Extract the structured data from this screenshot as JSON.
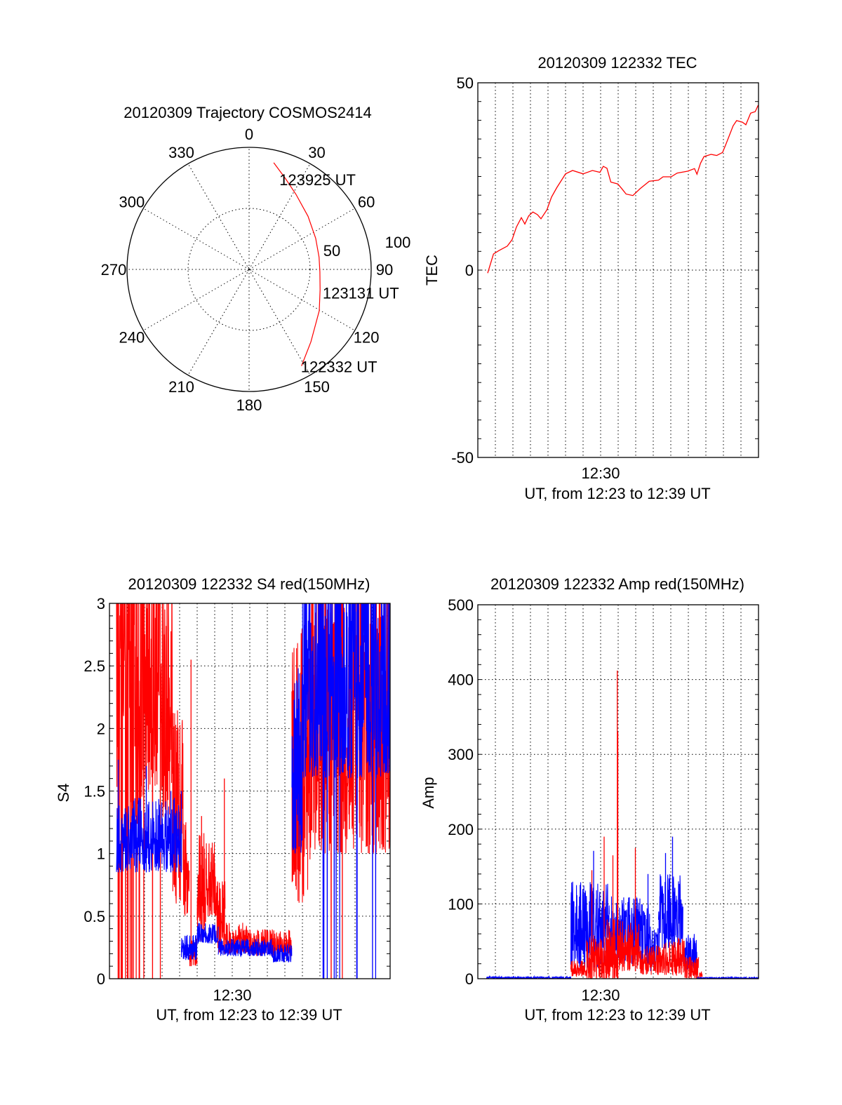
{
  "colors": {
    "red": "#ff0000",
    "blue": "#0000ff",
    "axis": "#000000"
  },
  "polar": {
    "title": "20120309 Trajectory COSMOS2414",
    "azimuth_labels": [
      "0",
      "30",
      "60",
      "90",
      "120",
      "150",
      "180",
      "210",
      "240",
      "270",
      "300",
      "330"
    ],
    "radial_labels": [
      "50",
      "100"
    ],
    "trajectory": [
      {
        "az": 13,
        "r": 89.7,
        "label": "123925 UT"
      },
      {
        "az": 22,
        "r": 80
      },
      {
        "az": 32,
        "r": 72.5
      },
      {
        "az": 48,
        "r": 65
      },
      {
        "az": 65,
        "r": 60.2
      },
      {
        "az": 80,
        "r": 58.2
      },
      {
        "az": 92,
        "r": 58,
        "label": "123131 UT"
      },
      {
        "az": 106,
        "r": 60.5
      },
      {
        "az": 120.5,
        "r": 66.7
      },
      {
        "az": 139.5,
        "r": 78
      },
      {
        "az": 151.5,
        "r": 90,
        "label": "122332 UT"
      }
    ]
  },
  "chart_data": [
    {
      "type": "line",
      "title": "20120309 122332 TEC",
      "ylabel": "TEC",
      "xlabel": "UT, from 12:23 to 12:39 UT",
      "x_units": "minutes after 12:23",
      "xlim": [
        0,
        16
      ],
      "ylim": [
        -50,
        50
      ],
      "yticks": [
        "-50",
        "0",
        "50"
      ],
      "xtick_label": "12:30",
      "xtick_value": 7,
      "series": [
        {
          "name": "TEC",
          "color": "red",
          "x": [
            0.56,
            0.89,
            1.2,
            1.68,
            1.95,
            2.2,
            2.48,
            2.68,
            2.9,
            3.14,
            3.4,
            3.6,
            3.94,
            4.2,
            4.5,
            4.73,
            5.0,
            5.4,
            6.0,
            6.53,
            6.96,
            7.15,
            7.36,
            7.58,
            7.98,
            8.18,
            8.45,
            8.84,
            9.24,
            9.77,
            10.3,
            10.56,
            11.02,
            11.36,
            11.96,
            12.35,
            12.49,
            12.69,
            12.89,
            13.29,
            13.62,
            13.95,
            14.15,
            14.55,
            14.75,
            15.08,
            15.28,
            15.55,
            15.81,
            15.98
          ],
          "y": [
            -0.8,
            4.3,
            5.2,
            6.4,
            8.1,
            11.5,
            14,
            12.3,
            14.5,
            15.5,
            14.8,
            13.7,
            16.1,
            19.5,
            22,
            23.7,
            25.7,
            26.6,
            25.7,
            26.6,
            26.1,
            27.7,
            27.2,
            23.5,
            23,
            21.9,
            20.3,
            19.9,
            21.7,
            23.7,
            24,
            24.9,
            24.9,
            25.9,
            26.4,
            27.1,
            25.6,
            28.5,
            30.3,
            30.9,
            30.6,
            31.4,
            33.7,
            38.5,
            39.9,
            39.5,
            38.8,
            41.9,
            42.3,
            44
          ]
        }
      ]
    },
    {
      "type": "line",
      "title": "20120309 122332 S4 red(150MHz)",
      "ylabel": "S4",
      "xlabel": "UT, from 12:23 to 12:39 UT",
      "x_units": "minutes after 12:23",
      "xlim": [
        0,
        16
      ],
      "ylim": [
        0,
        3
      ],
      "yticks": [
        "0",
        "0.5",
        "1",
        "1.5",
        "2",
        "2.5",
        "3"
      ],
      "xtick_label": "12:30",
      "xtick_value": 7,
      "series": [
        {
          "name": "red",
          "color": "red",
          "segments": [
            {
              "t": [
                0.4,
                1.2
              ],
              "lo": 0.8,
              "hi": 3.5,
              "drop": 0.25
            },
            {
              "t": [
                1.2,
                2.0
              ],
              "lo": 1.2,
              "hi": 3.5,
              "drop": 0.2
            },
            {
              "t": [
                2.0,
                3.0
              ],
              "lo": 1.5,
              "hi": 3.5,
              "drop": 0.1
            },
            {
              "t": [
                3.0,
                3.6
              ],
              "lo": 1.2,
              "hi": 3.2,
              "drop": 0.03
            },
            {
              "t": [
                3.6,
                4.2
              ],
              "lo": 0.6,
              "hi": 2.2,
              "drop": 0
            },
            {
              "t": [
                4.2,
                4.55
              ],
              "lo": 0.5,
              "hi": 1.3,
              "drop": 0
            },
            {
              "t": [
                4.55,
                5.0
              ],
              "lo": 0.1,
              "hi": 0.35,
              "drop": 0
            },
            {
              "t": [
                5.0,
                5.5
              ],
              "lo": 0.3,
              "hi": 1.2,
              "drop": 0
            },
            {
              "t": [
                5.5,
                6.1
              ],
              "lo": 0.5,
              "hi": 1.1,
              "drop": 0
            },
            {
              "t": [
                6.1,
                6.6
              ],
              "lo": 0.2,
              "hi": 0.8,
              "drop": 0
            },
            {
              "t": [
                6.6,
                8.0
              ],
              "lo": 0.2,
              "hi": 0.45,
              "drop": 0
            },
            {
              "t": [
                8.0,
                10.4
              ],
              "lo": 0.18,
              "hi": 0.4,
              "drop": 0
            },
            {
              "t": [
                10.4,
                11.5
              ],
              "lo": 0.6,
              "hi": 2.8,
              "drop": 0
            },
            {
              "t": [
                11.5,
                16.0
              ],
              "lo": 1.0,
              "hi": 3.5,
              "drop": 0.02
            }
          ],
          "spikes": [
            [
              4.65,
              2.55
            ],
            [
              6.55,
              1.6
            ],
            [
              5.25,
              1.3
            ]
          ]
        },
        {
          "name": "blue",
          "color": "blue",
          "segments": [
            {
              "t": [
                0.4,
                4.1
              ],
              "lo": 0.85,
              "hi": 1.45,
              "drop": 0
            },
            {
              "t": [
                4.1,
                5.0
              ],
              "lo": 0.15,
              "hi": 0.35,
              "drop": 0
            },
            {
              "t": [
                5.0,
                6.2
              ],
              "lo": 0.28,
              "hi": 0.45,
              "drop": 0
            },
            {
              "t": [
                6.2,
                9.3
              ],
              "lo": 0.18,
              "hi": 0.32,
              "drop": 0
            },
            {
              "t": [
                9.3,
                10.4
              ],
              "lo": 0.13,
              "hi": 0.28,
              "drop": 0
            },
            {
              "t": [
                10.4,
                11.0
              ],
              "lo": 1.0,
              "hi": 2.5,
              "drop": 0
            },
            {
              "t": [
                11.0,
                16.0
              ],
              "lo": 1.6,
              "hi": 3.5,
              "drop": 0.06
            }
          ],
          "spikes": [
            [
              0.5,
              1.75
            ],
            [
              2.1,
              1.7
            ],
            [
              3.5,
              1.5
            ],
            [
              4.1,
              1.5
            ]
          ]
        }
      ]
    },
    {
      "type": "line",
      "title": "20120309 122332 Amp red(150MHz)",
      "ylabel": "Amp",
      "xlabel": "UT, from 12:23 to 12:39 UT",
      "x_units": "minutes after 12:23",
      "xlim": [
        0,
        16
      ],
      "ylim": [
        0,
        500
      ],
      "yticks": [
        "0",
        "100",
        "200",
        "300",
        "400",
        "500"
      ],
      "xtick_label": "12:30",
      "xtick_value": 7,
      "series": [
        {
          "name": "blue",
          "color": "blue",
          "segments": [
            {
              "t": [
                0.5,
                5.3
              ],
              "lo": 0,
              "hi": 3,
              "drop": 0
            },
            {
              "t": [
                5.3,
                7.5
              ],
              "lo": 15,
              "hi": 130,
              "drop": 0
            },
            {
              "t": [
                7.5,
                9.8
              ],
              "lo": 20,
              "hi": 110,
              "drop": 0
            },
            {
              "t": [
                9.8,
                10.3
              ],
              "lo": 10,
              "hi": 70,
              "drop": 0
            },
            {
              "t": [
                10.3,
                11.7
              ],
              "lo": 40,
              "hi": 140,
              "drop": 0
            },
            {
              "t": [
                11.7,
                12.5
              ],
              "lo": 10,
              "hi": 60,
              "drop": 0
            },
            {
              "t": [
                12.5,
                16.0
              ],
              "lo": 0,
              "hi": 2,
              "drop": 0
            }
          ],
          "spikes": [
            [
              6.6,
              171
            ],
            [
              6.1,
              115
            ],
            [
              9.7,
              140
            ],
            [
              11.1,
              190
            ],
            [
              10.7,
              168
            ]
          ]
        },
        {
          "name": "red",
          "color": "red",
          "segments": [
            {
              "t": [
                5.3,
                6.2
              ],
              "lo": 3,
              "hi": 25,
              "drop": 0
            },
            {
              "t": [
                6.2,
                7.3
              ],
              "lo": 0,
              "hi": 60,
              "drop": 0
            },
            {
              "t": [
                7.3,
                8.0
              ],
              "lo": 0,
              "hi": 80,
              "drop": 0
            },
            {
              "t": [
                8.0,
                9.2
              ],
              "lo": 10,
              "hi": 80,
              "drop": 0
            },
            {
              "t": [
                9.2,
                10.6
              ],
              "lo": 5,
              "hi": 45,
              "drop": 0
            },
            {
              "t": [
                10.6,
                11.8
              ],
              "lo": 5,
              "hi": 55,
              "drop": 0
            },
            {
              "t": [
                11.8,
                12.6
              ],
              "lo": 0,
              "hi": 30,
              "drop": 0
            },
            {
              "t": [
                12.6,
                12.8
              ],
              "lo": 0,
              "hi": 10,
              "drop": 0
            }
          ],
          "spikes": [
            [
              6.5,
              145
            ],
            [
              7.2,
              190
            ],
            [
              7.95,
              412
            ],
            [
              7.98,
              330
            ],
            [
              7.7,
              165
            ],
            [
              8.98,
              175
            ]
          ]
        }
      ]
    }
  ]
}
